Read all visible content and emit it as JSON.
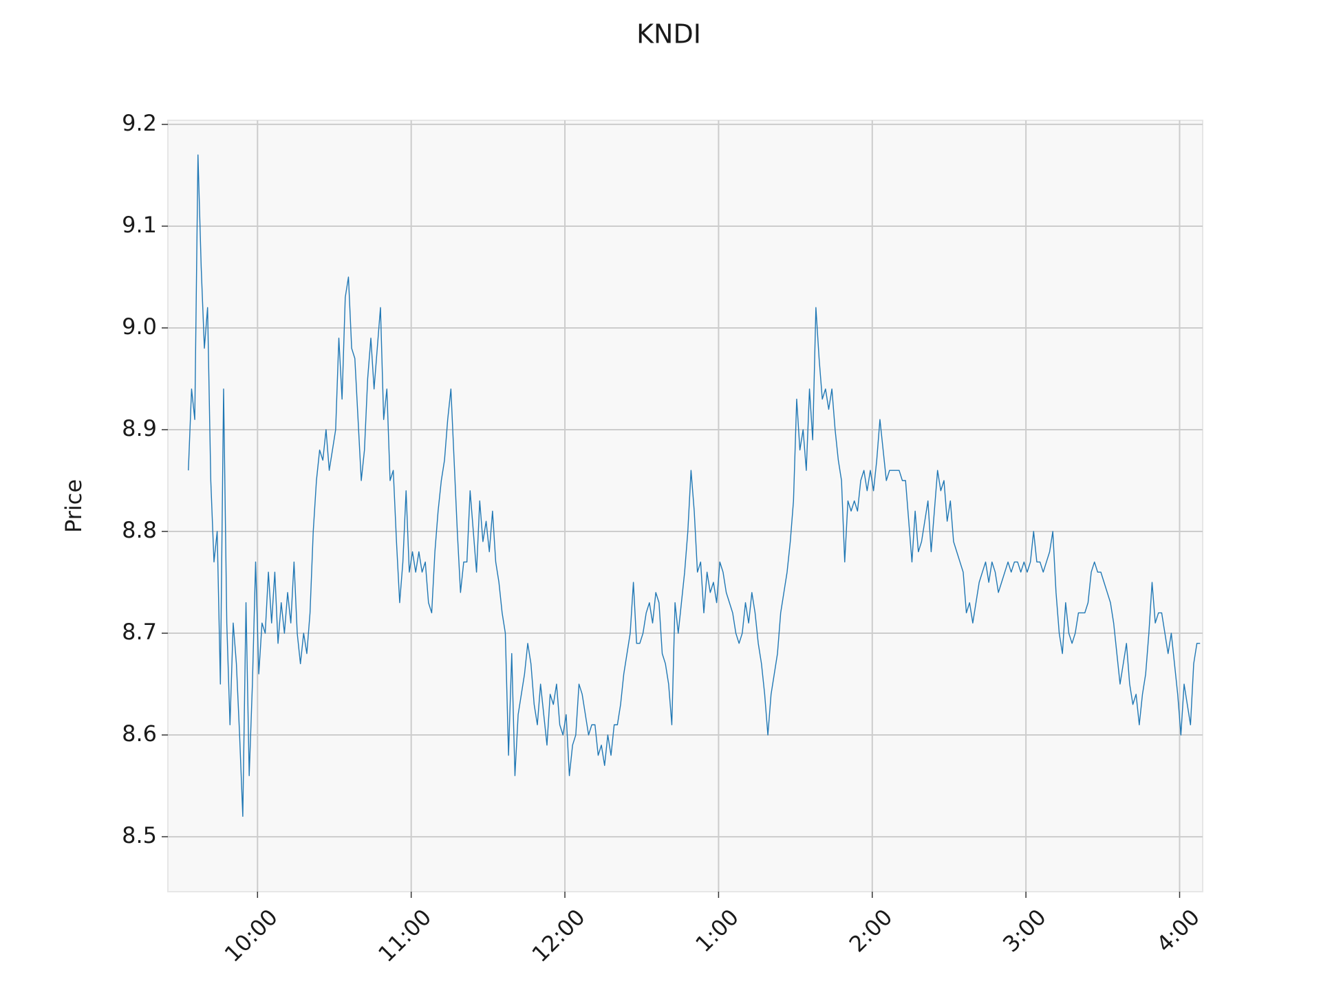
{
  "chart_data": {
    "type": "line",
    "title": "KNDI",
    "y_label": "Price",
    "xlim": [
      565,
      969
    ],
    "ylim": [
      8.446,
      9.204
    ],
    "xticks": [
      {
        "value": 600,
        "label": "10:00"
      },
      {
        "value": 660,
        "label": "11:00"
      },
      {
        "value": 720,
        "label": "12:00"
      },
      {
        "value": 780,
        "label": "1:00"
      },
      {
        "value": 840,
        "label": "2:00"
      },
      {
        "value": 900,
        "label": "3:00"
      },
      {
        "value": 960,
        "label": "4:00"
      }
    ],
    "yticks": [
      8.5,
      8.6,
      8.7,
      8.8,
      8.9,
      9.0,
      9.1,
      9.2
    ],
    "yticks_labels": [
      "8.5",
      "8.6",
      "8.7",
      "8.8",
      "8.9",
      "9.0",
      "9.1",
      "9.2"
    ],
    "grid": true,
    "x": [
      573,
      574.25,
      575.5,
      576.75,
      578,
      579.25,
      580.5,
      581.75,
      583,
      584.25,
      585.5,
      586.75,
      588,
      589.25,
      590.5,
      591.75,
      593,
      594.25,
      595.5,
      596.75,
      598,
      599.25,
      600.5,
      601.75,
      603,
      604.25,
      605.5,
      606.75,
      608,
      609.25,
      610.5,
      611.75,
      613,
      614.25,
      615.5,
      616.75,
      618,
      619.25,
      620.5,
      621.75,
      623,
      624.25,
      625.5,
      626.75,
      628,
      629.25,
      630.5,
      631.75,
      633,
      634.25,
      635.5,
      636.75,
      638,
      639.25,
      640.5,
      641.75,
      643,
      644.25,
      645.5,
      646.75,
      648,
      649.25,
      650.5,
      651.75,
      653,
      654.25,
      655.5,
      656.75,
      658,
      659.25,
      660.5,
      661.75,
      663,
      664.25,
      665.5,
      666.75,
      668,
      669.25,
      670.5,
      671.75,
      673,
      674.25,
      675.5,
      676.75,
      678,
      679.25,
      680.5,
      681.75,
      683,
      684.25,
      685.5,
      686.75,
      688,
      689.25,
      690.5,
      691.75,
      693,
      694.25,
      695.5,
      696.75,
      698,
      699.25,
      700.5,
      701.75,
      703,
      704.25,
      705.5,
      706.75,
      708,
      709.25,
      710.5,
      711.75,
      713,
      714.25,
      715.5,
      716.75,
      718,
      719.25,
      720.5,
      721.75,
      723,
      724.25,
      725.5,
      726.75,
      728,
      729.25,
      730.5,
      731.75,
      733,
      734.25,
      735.5,
      736.75,
      738,
      739.25,
      740.5,
      741.75,
      743,
      744.25,
      745.5,
      746.75,
      748,
      749.25,
      750.5,
      751.75,
      753,
      754.25,
      755.5,
      756.75,
      758,
      759.25,
      760.5,
      761.75,
      763,
      764.25,
      765.5,
      766.75,
      768,
      769.25,
      770.5,
      771.75,
      773,
      774.25,
      775.5,
      776.75,
      778,
      779.25,
      780.5,
      781.75,
      783,
      784.25,
      785.5,
      786.75,
      788,
      789.25,
      790.5,
      791.75,
      793,
      794.25,
      795.5,
      796.75,
      798,
      799.25,
      800.5,
      801.75,
      803,
      804.25,
      805.5,
      806.75,
      808,
      809.25,
      810.5,
      811.75,
      813,
      814.25,
      815.5,
      816.75,
      818,
      819.25,
      820.5,
      821.75,
      823,
      824.25,
      825.5,
      826.75,
      828,
      829.25,
      830.5,
      831.75,
      833,
      834.25,
      835.5,
      836.75,
      838,
      839.25,
      840.5,
      841.75,
      843,
      844.25,
      845.5,
      846.75,
      848,
      849.25,
      850.5,
      851.75,
      853,
      854.25,
      855.5,
      856.75,
      858,
      859.25,
      860.5,
      861.75,
      863,
      864.25,
      865.5,
      866.75,
      868,
      869.25,
      870.5,
      871.75,
      873,
      874.25,
      875.5,
      876.75,
      878,
      879.25,
      880.5,
      881.75,
      883,
      884.25,
      885.5,
      886.75,
      888,
      889.25,
      890.5,
      891.75,
      893,
      894.25,
      895.5,
      896.75,
      898,
      899.25,
      900.5,
      901.75,
      903,
      904.25,
      905.5,
      906.75,
      908,
      909.25,
      910.5,
      911.75,
      913,
      914.25,
      915.5,
      916.75,
      918,
      919.25,
      920.5,
      921.75,
      923,
      924.25,
      925.5,
      926.75,
      928,
      929.25,
      930.5,
      931.75,
      933,
      934.25,
      935.5,
      936.75,
      938,
      939.25,
      940.5,
      941.75,
      943,
      944.25,
      945.5,
      946.75,
      948,
      949.25,
      950.5,
      951.75,
      953,
      954.25,
      955.5,
      956.75,
      958,
      959.25,
      960.5,
      961.75,
      963,
      964.25,
      965.5,
      966.75,
      968
    ],
    "series": [
      {
        "color": "#1f77b4",
        "values": [
          8.86,
          8.94,
          8.91,
          9.17,
          9.06,
          8.98,
          9.02,
          8.85,
          8.77,
          8.8,
          8.65,
          8.94,
          8.71,
          8.61,
          8.71,
          8.67,
          8.6,
          8.52,
          8.73,
          8.56,
          8.65,
          8.77,
          8.66,
          8.71,
          8.7,
          8.76,
          8.71,
          8.76,
          8.69,
          8.73,
          8.7,
          8.74,
          8.71,
          8.77,
          8.7,
          8.67,
          8.7,
          8.68,
          8.72,
          8.8,
          8.85,
          8.88,
          8.87,
          8.9,
          8.86,
          8.88,
          8.9,
          8.99,
          8.93,
          9.03,
          9.05,
          8.98,
          8.97,
          8.91,
          8.85,
          8.88,
          8.95,
          8.99,
          8.94,
          8.98,
          9.02,
          8.91,
          8.94,
          8.85,
          8.86,
          8.79,
          8.73,
          8.77,
          8.84,
          8.76,
          8.78,
          8.76,
          8.78,
          8.76,
          8.77,
          8.73,
          8.72,
          8.78,
          8.82,
          8.85,
          8.87,
          8.91,
          8.94,
          8.87,
          8.8,
          8.74,
          8.77,
          8.77,
          8.84,
          8.8,
          8.76,
          8.83,
          8.79,
          8.81,
          8.78,
          8.82,
          8.77,
          8.75,
          8.72,
          8.7,
          8.58,
          8.68,
          8.56,
          8.62,
          8.64,
          8.66,
          8.69,
          8.67,
          8.63,
          8.61,
          8.65,
          8.62,
          8.59,
          8.64,
          8.63,
          8.65,
          8.61,
          8.6,
          8.62,
          8.56,
          8.59,
          8.6,
          8.65,
          8.64,
          8.62,
          8.6,
          8.61,
          8.61,
          8.58,
          8.59,
          8.57,
          8.6,
          8.58,
          8.61,
          8.61,
          8.63,
          8.66,
          8.68,
          8.7,
          8.75,
          8.69,
          8.69,
          8.7,
          8.72,
          8.73,
          8.71,
          8.74,
          8.73,
          8.68,
          8.67,
          8.65,
          8.61,
          8.73,
          8.7,
          8.73,
          8.76,
          8.8,
          8.86,
          8.82,
          8.76,
          8.77,
          8.72,
          8.76,
          8.74,
          8.75,
          8.73,
          8.77,
          8.76,
          8.74,
          8.73,
          8.72,
          8.7,
          8.69,
          8.7,
          8.73,
          8.71,
          8.74,
          8.72,
          8.69,
          8.67,
          8.64,
          8.6,
          8.64,
          8.66,
          8.68,
          8.72,
          8.74,
          8.76,
          8.79,
          8.83,
          8.93,
          8.88,
          8.9,
          8.86,
          8.94,
          8.89,
          9.02,
          8.97,
          8.93,
          8.94,
          8.92,
          8.94,
          8.9,
          8.87,
          8.85,
          8.77,
          8.83,
          8.82,
          8.83,
          8.82,
          8.85,
          8.86,
          8.84,
          8.86,
          8.84,
          8.87,
          8.91,
          8.88,
          8.85,
          8.86,
          8.86,
          8.86,
          8.86,
          8.85,
          8.85,
          8.81,
          8.77,
          8.82,
          8.78,
          8.79,
          8.81,
          8.83,
          8.78,
          8.82,
          8.86,
          8.84,
          8.85,
          8.81,
          8.83,
          8.79,
          8.78,
          8.77,
          8.76,
          8.72,
          8.73,
          8.71,
          8.73,
          8.75,
          8.76,
          8.77,
          8.75,
          8.77,
          8.76,
          8.74,
          8.75,
          8.76,
          8.77,
          8.76,
          8.77,
          8.77,
          8.76,
          8.77,
          8.76,
          8.77,
          8.8,
          8.77,
          8.77,
          8.76,
          8.77,
          8.78,
          8.8,
          8.74,
          8.7,
          8.68,
          8.73,
          8.7,
          8.69,
          8.7,
          8.72,
          8.72,
          8.72,
          8.73,
          8.76,
          8.77,
          8.76,
          8.76,
          8.75,
          8.74,
          8.73,
          8.71,
          8.68,
          8.65,
          8.67,
          8.69,
          8.65,
          8.63,
          8.64,
          8.61,
          8.64,
          8.66,
          8.7,
          8.75,
          8.71,
          8.72,
          8.72,
          8.7,
          8.68,
          8.7,
          8.67,
          8.64,
          8.6,
          8.65,
          8.63,
          8.61,
          8.67,
          8.69,
          8.69
        ]
      }
    ]
  }
}
